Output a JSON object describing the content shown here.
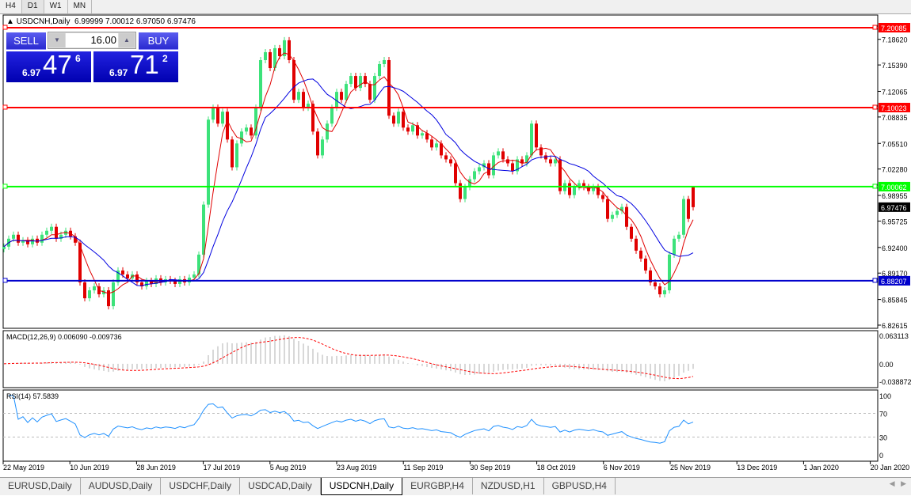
{
  "timeframes": [
    "H4",
    "D1",
    "W1",
    "MN"
  ],
  "active_timeframe": "D1",
  "header": {
    "symbol": "USDCNH,Daily",
    "ohlc": "6.99999 7.00012 6.97050 6.97476"
  },
  "trade_panel": {
    "sell_label": "SELL",
    "buy_label": "BUY",
    "lot": "16.00",
    "sell_small": "6.97",
    "sell_big": "47",
    "sell_pip": "6",
    "buy_small": "6.97",
    "buy_big": "71",
    "buy_pip": "2"
  },
  "indicators": {
    "macd_label": "MACD(12,26,9) 0.006090 -0.009736",
    "rsi_label": "RSI(14) 57.5839"
  },
  "colors": {
    "bull": "#3ce27a",
    "bear": "#e00000",
    "ma_fast": "#e00000",
    "ma_slow": "#0000e0",
    "macd_signal": "#ff0000",
    "rsi": "#1e90ff"
  },
  "chart_data": {
    "type": "candlestick",
    "symbol": "USDCNH",
    "timeframe": "Daily",
    "ylim": [
      6.82615,
      7.20085
    ],
    "y_ticks": [
      "7.18620",
      "7.15390",
      "7.12065",
      "7.08835",
      "7.05510",
      "7.02280",
      "6.98955",
      "6.95725",
      "6.92400",
      "6.89170",
      "6.85845",
      "6.82615"
    ],
    "x_ticks": [
      "22 May 2019",
      "10 Jun 2019",
      "28 Jun 2019",
      "17 Jul 2019",
      "5 Aug 2019",
      "23 Aug 2019",
      "11 Sep 2019",
      "30 Sep 2019",
      "18 Oct 2019",
      "6 Nov 2019",
      "25 Nov 2019",
      "13 Dec 2019",
      "1 Jan 2020",
      "20 Jan 2020"
    ],
    "last_bar": {
      "open": 6.99999,
      "high": 7.00012,
      "low": 6.9705,
      "close": 6.97476
    },
    "current_price": "6.97476",
    "levels": [
      {
        "value": "7.20085",
        "color": "#ff0000"
      },
      {
        "value": "7.10023",
        "color": "#ff0000"
      },
      {
        "value": "7.00062",
        "color": "#00ff00"
      },
      {
        "value": "6.88207",
        "color": "#0000cc"
      }
    ],
    "closes": [
      6.925,
      6.935,
      6.94,
      6.93,
      6.933,
      6.928,
      6.935,
      6.93,
      6.94,
      6.945,
      6.95,
      6.935,
      6.94,
      6.945,
      6.938,
      6.93,
      6.88,
      6.86,
      6.87,
      6.875,
      6.865,
      6.87,
      6.85,
      6.88,
      6.895,
      6.89,
      6.885,
      6.89,
      6.88,
      6.875,
      6.882,
      6.878,
      6.885,
      6.88,
      6.884,
      6.882,
      6.878,
      6.884,
      6.88,
      6.886,
      6.89,
      6.915,
      6.978,
      7.085,
      7.1,
      7.08,
      7.095,
      7.06,
      7.025,
      7.055,
      7.07,
      7.075,
      7.065,
      7.1,
      7.16,
      7.17,
      7.15,
      7.175,
      7.165,
      7.185,
      7.16,
      7.11,
      7.12,
      7.1,
      7.105,
      7.07,
      7.04,
      7.06,
      7.08,
      7.1,
      7.12,
      7.11,
      7.13,
      7.14,
      7.125,
      7.14,
      7.13,
      7.11,
      7.14,
      7.155,
      7.16,
      7.09,
      7.08,
      7.095,
      7.075,
      7.07,
      7.078,
      7.065,
      7.068,
      7.06,
      7.05,
      7.055,
      7.04,
      7.035,
      7.03,
      7.005,
      6.985,
      7.0,
      7.01,
      7.02,
      7.025,
      7.03,
      7.015,
      7.04,
      7.045,
      7.035,
      7.03,
      7.02,
      7.035,
      7.03,
      7.04,
      7.08,
      7.05,
      7.04,
      7.035,
      7.03,
      7.035,
      6.995,
      7.005,
      6.99,
      7.0,
      7.005,
      7.0,
      6.995,
      7.0,
      6.99,
      6.985,
      6.96,
      6.965,
      6.97,
      6.975,
      6.95,
      6.935,
      6.92,
      6.91,
      6.895,
      6.88,
      6.875,
      6.865,
      6.87,
      6.915,
      6.935,
      6.94,
      6.985,
      6.96,
      6.97476
    ],
    "macd": {
      "ylim": [
        -0.038872,
        0.063113
      ],
      "ticks": [
        "0.063113",
        "0.00",
        "-0.038872"
      ]
    },
    "rsi": {
      "ylim": [
        0,
        100
      ],
      "ticks": [
        "100",
        "70",
        "30",
        "0"
      ],
      "levels": [
        70,
        30
      ]
    }
  },
  "symbol_tabs": [
    "EURUSD,Daily",
    "AUDUSD,Daily",
    "USDCHF,Daily",
    "USDCAD,Daily",
    "USDCNH,Daily",
    "EURGBP,H4",
    "NZDUSD,H1",
    "GBPUSD,H4"
  ],
  "active_tab": "USDCNH,Daily"
}
